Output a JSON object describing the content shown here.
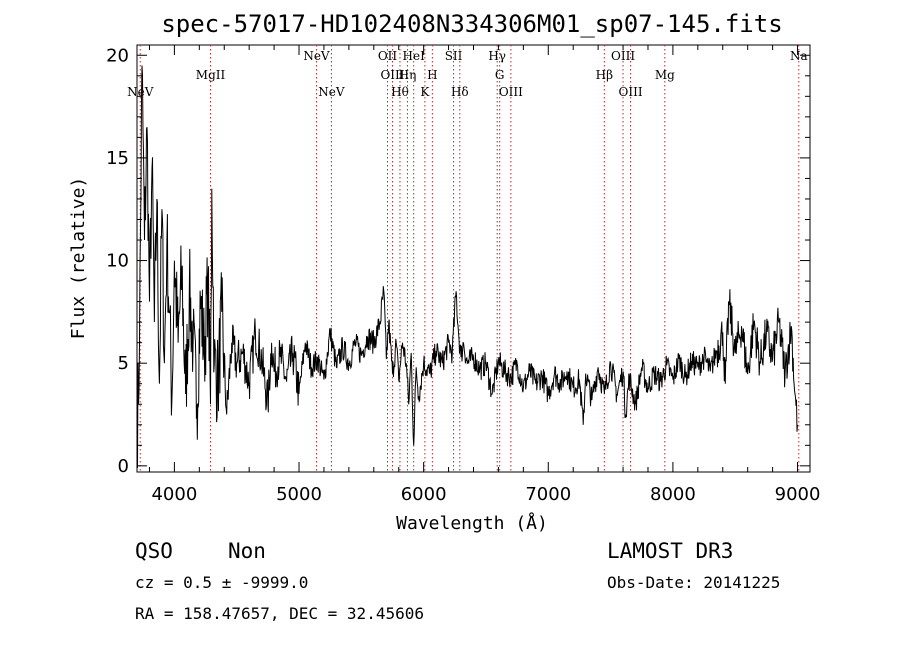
{
  "chart_data": {
    "type": "line",
    "title": "spec-57017-HD102408N334306M01_sp07-145.fits",
    "xlabel": "Wavelength (Å)",
    "ylabel": "Flux (relative)",
    "xlim": [
      3700,
      9100
    ],
    "ylim": [
      -0.3,
      20.5
    ],
    "xticks": [
      4000,
      5000,
      6000,
      7000,
      8000,
      9000
    ],
    "yticks": [
      0,
      5,
      10,
      15,
      20
    ],
    "grid": false,
    "series": [
      {
        "x": [
          3700,
          3720,
          3740,
          3760,
          3780,
          3800,
          3820,
          3840,
          3860,
          3880,
          3900,
          3920,
          3940,
          3960,
          3980,
          4000,
          4030,
          4060,
          4090,
          4120,
          4150,
          4180,
          4210,
          4240,
          4270,
          4290,
          4300,
          4320,
          4350,
          4380,
          4420,
          4460,
          4500,
          4550,
          4600,
          4650,
          4700,
          4750,
          4780,
          4800,
          4850,
          4900,
          4950,
          5000,
          5050,
          5100,
          5150,
          5200,
          5250,
          5300,
          5350,
          5400,
          5450,
          5500,
          5550,
          5600,
          5650,
          5680,
          5700,
          5720,
          5750,
          5780,
          5800,
          5830,
          5860,
          5880,
          5900,
          5920,
          5940,
          5960,
          6000,
          6050,
          6100,
          6150,
          6200,
          6230,
          6260,
          6280,
          6300,
          6320,
          6350,
          6400,
          6450,
          6500,
          6550,
          6600,
          6650,
          6700,
          6750,
          6800,
          6850,
          6900,
          6950,
          7000,
          7050,
          7100,
          7150,
          7200,
          7250,
          7280,
          7300,
          7350,
          7400,
          7450,
          7500,
          7550,
          7600,
          7620,
          7650,
          7700,
          7750,
          7800,
          7850,
          7900,
          7950,
          8000,
          8050,
          8100,
          8150,
          8200,
          8250,
          8300,
          8350,
          8400,
          8420,
          8450,
          8500,
          8550,
          8600,
          8650,
          8700,
          8750,
          8800,
          8850,
          8900,
          8950,
          8980,
          9000
        ],
        "y": [
          1.0,
          6.0,
          19.5,
          11.0,
          16.5,
          8.0,
          14.5,
          7.0,
          13.0,
          4.0,
          12.5,
          5.0,
          11.0,
          7.5,
          3.2,
          10.0,
          6.0,
          9.5,
          3.5,
          8.5,
          6.0,
          3.0,
          8.0,
          5.5,
          9.0,
          3.0,
          13.5,
          5.0,
          4.0,
          7.5,
          2.5,
          6.0,
          5.0,
          5.5,
          4.0,
          6.5,
          5.2,
          3.0,
          6.0,
          4.6,
          5.3,
          4.1,
          5.5,
          3.5,
          6.0,
          4.8,
          5.2,
          4.2,
          6.5,
          4.8,
          5.8,
          5.0,
          6.0,
          5.4,
          6.3,
          6.0,
          7.0,
          8.5,
          5.2,
          7.0,
          4.5,
          6.0,
          4.2,
          6.0,
          5.0,
          3.0,
          5.5,
          1.0,
          4.8,
          3.4,
          5.0,
          4.5,
          5.6,
          5.0,
          6.0,
          5.5,
          8.5,
          6.5,
          5.3,
          6.0,
          5.0,
          5.3,
          4.7,
          5.0,
          3.5,
          5.1,
          4.6,
          4.3,
          5.0,
          3.8,
          4.6,
          4.0,
          4.4,
          3.5,
          4.5,
          4.0,
          4.6,
          3.8,
          4.2,
          2.0,
          4.5,
          3.2,
          4.8,
          3.5,
          5.0,
          3.5,
          4.6,
          2.5,
          4.3,
          3.0,
          4.8,
          3.8,
          4.5,
          4.1,
          4.9,
          4.2,
          5.2,
          4.3,
          5.1,
          4.8,
          5.3,
          4.6,
          5.6,
          6.5,
          4.0,
          8.0,
          5.5,
          6.8,
          4.5,
          7.0,
          5.0,
          6.5,
          5.2,
          7.0,
          4.5,
          6.8,
          3.5,
          2.0
        ]
      }
    ],
    "lines": [
      {
        "name": "NeV",
        "x": 3726,
        "row": 1
      },
      {
        "name": "MgII",
        "x": 4290,
        "row": 0
      },
      {
        "name": "NeV",
        "x": 5140,
        "row": -1
      },
      {
        "name": "NeV",
        "x": 5260,
        "row": 1
      },
      {
        "name": "OII",
        "x": 5710,
        "row": -1
      },
      {
        "name": "OIII",
        "x": 5750,
        "row": 0
      },
      {
        "name": "Hθ",
        "x": 5810,
        "row": 1
      },
      {
        "name": "Hη",
        "x": 5870,
        "row": 0
      },
      {
        "name": "HeI",
        "x": 5920,
        "row": -1
      },
      {
        "name": "K",
        "x": 6010,
        "row": 1
      },
      {
        "name": "H",
        "x": 6070,
        "row": 0
      },
      {
        "name": "SII",
        "x": 6240,
        "row": -1
      },
      {
        "name": "Hδ",
        "x": 6290,
        "row": 1
      },
      {
        "name": "Hγ",
        "x": 6590,
        "row": -1
      },
      {
        "name": "G",
        "x": 6610,
        "row": 0
      },
      {
        "name": "OIII",
        "x": 6700,
        "row": 1
      },
      {
        "name": "Hβ",
        "x": 7450,
        "row": 0
      },
      {
        "name": "OIII",
        "x": 7600,
        "row": -1
      },
      {
        "name": "OIII",
        "x": 7660,
        "row": 1
      },
      {
        "name": "Mg",
        "x": 7935,
        "row": 0
      },
      {
        "name": "Na",
        "x": 9010,
        "row": -1
      }
    ]
  },
  "info": {
    "class": "QSO",
    "subclass": "Non",
    "survey": "LAMOST DR3",
    "cz": "cz = 0.5 ± -9999.0",
    "obs_date": "Obs-Date: 20141225",
    "radec": "RA = 158.47657, DEC =  32.45606"
  }
}
